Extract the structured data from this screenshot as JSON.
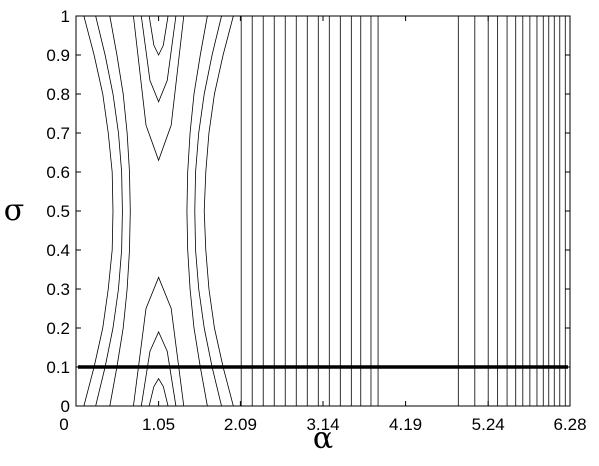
{
  "chart_data": {
    "type": "contour",
    "xlabel": "α",
    "ylabel": "σ",
    "xlim": [
      0,
      6.28
    ],
    "ylim": [
      0,
      1
    ],
    "xticks": [
      0,
      1.05,
      2.09,
      3.14,
      4.19,
      5.24,
      6.28
    ],
    "yticks": [
      0,
      0.1,
      0.2,
      0.3,
      0.4,
      0.5,
      0.6,
      0.7,
      0.8,
      0.9,
      1
    ],
    "line_color": "#000000",
    "highlight_sigma": 0.1,
    "vertical_contours": [
      2.1,
      2.24,
      2.38,
      2.52,
      2.66,
      2.8,
      2.94,
      3.08,
      3.22,
      3.36,
      3.5,
      3.62,
      3.75,
      3.84,
      4.86,
      5.07,
      5.24,
      5.36,
      5.48,
      5.59,
      5.68,
      5.77,
      5.86,
      5.94,
      6.01,
      6.08,
      6.15,
      6.22
    ],
    "curved_contours": [
      {
        "x": [
          0.43,
          0.52,
          0.6,
          0.65,
          0.68,
          0.69,
          0.68,
          0.65,
          0.6,
          0.52,
          0.43
        ],
        "y": [
          0,
          0.1,
          0.2,
          0.3,
          0.4,
          0.5,
          0.6,
          0.7,
          0.8,
          0.9,
          1
        ]
      },
      {
        "x": [
          1.67,
          1.58,
          1.5,
          1.45,
          1.42,
          1.41,
          1.42,
          1.45,
          1.5,
          1.58,
          1.67
        ],
        "y": [
          0,
          0.1,
          0.2,
          0.3,
          0.4,
          0.5,
          0.6,
          0.7,
          0.8,
          0.9,
          1
        ]
      },
      {
        "x": [
          0.25,
          0.37,
          0.47,
          0.54,
          0.58,
          0.59,
          0.58,
          0.54,
          0.47,
          0.37,
          0.25
        ],
        "y": [
          0,
          0.1,
          0.2,
          0.3,
          0.4,
          0.5,
          0.6,
          0.7,
          0.8,
          0.9,
          1
        ]
      },
      {
        "x": [
          1.85,
          1.73,
          1.63,
          1.56,
          1.52,
          1.51,
          1.52,
          1.56,
          1.63,
          1.73,
          1.85
        ],
        "y": [
          0,
          0.1,
          0.2,
          0.3,
          0.4,
          0.5,
          0.6,
          0.7,
          0.8,
          0.9,
          1
        ]
      },
      {
        "x": [
          0.1,
          0.23,
          0.34,
          0.41,
          0.46,
          0.47,
          0.46,
          0.41,
          0.34,
          0.23,
          0.1
        ],
        "y": [
          0,
          0.1,
          0.2,
          0.3,
          0.4,
          0.5,
          0.6,
          0.7,
          0.8,
          0.9,
          1
        ]
      },
      {
        "x": [
          2.0,
          1.87,
          1.76,
          1.69,
          1.65,
          1.63,
          1.65,
          1.69,
          1.76,
          1.87,
          2.0
        ],
        "y": [
          0,
          0.1,
          0.2,
          0.3,
          0.4,
          0.5,
          0.6,
          0.7,
          0.8,
          0.9,
          1
        ]
      },
      {
        "x": [
          0.93,
          0.99,
          1.05,
          1.11,
          1.17
        ],
        "y": [
          1,
          0.925,
          0.9,
          0.925,
          1
        ]
      },
      {
        "x": [
          0.83,
          0.94,
          1.05,
          1.16,
          1.27
        ],
        "y": [
          1,
          0.835,
          0.78,
          0.835,
          1
        ]
      },
      {
        "x": [
          0.73,
          0.89,
          1.05,
          1.21,
          1.37
        ],
        "y": [
          1,
          0.72,
          0.63,
          0.72,
          1
        ]
      },
      {
        "x": [
          0.93,
          0.99,
          1.05,
          1.11,
          1.17
        ],
        "y": [
          0,
          0.05,
          0.07,
          0.05,
          0
        ]
      },
      {
        "x": [
          0.83,
          0.94,
          1.05,
          1.16,
          1.27
        ],
        "y": [
          0,
          0.14,
          0.19,
          0.14,
          0
        ]
      },
      {
        "x": [
          0.73,
          0.89,
          1.05,
          1.21,
          1.37
        ],
        "y": [
          0,
          0.25,
          0.33,
          0.25,
          0
        ]
      }
    ]
  }
}
